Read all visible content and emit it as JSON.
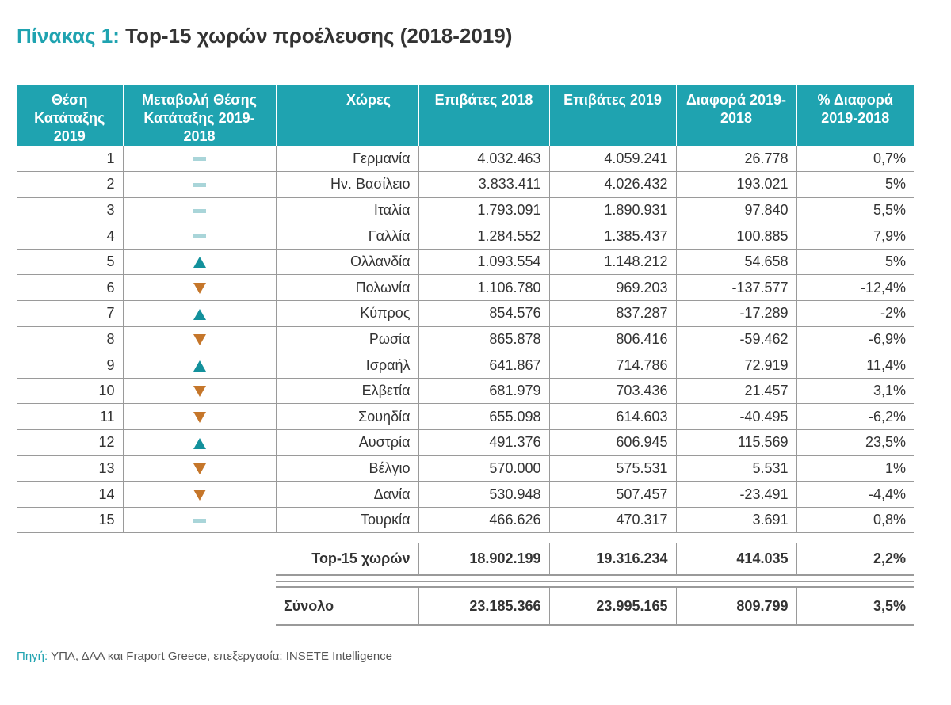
{
  "title": {
    "prefix": "Πίνακας 1:",
    "text": "Top-15 χωρών προέλευσης (2018-2019)"
  },
  "colors": {
    "header_bg": "#1FA3B0",
    "up_arrow": "#13919C",
    "down_arrow": "#C5762A",
    "no_change": "#A9D5D9"
  },
  "chart_data": {
    "type": "table",
    "title": "Top-15 χωρών προέλευσης (2018-2019)",
    "columns": [
      "Θέση Κατάταξης 2019",
      "Μεταβολή Θέσης Κατάταξης 2019-2018",
      "Χώρες",
      "Επιβάτες 2018",
      "Επιβάτες 2019",
      "Διαφορά 2019-2018",
      "% Διαφορά 2019-2018"
    ],
    "rows": [
      {
        "rank": "1",
        "change": "same",
        "country": "Γερμανία",
        "p2018": "4.032.463",
        "p2019": "4.059.241",
        "diff": "26.778",
        "pct": "0,7%"
      },
      {
        "rank": "2",
        "change": "same",
        "country": "Ην. Βασίλειο",
        "p2018": "3.833.411",
        "p2019": "4.026.432",
        "diff": "193.021",
        "pct": "5%"
      },
      {
        "rank": "3",
        "change": "same",
        "country": "Ιταλία",
        "p2018": "1.793.091",
        "p2019": "1.890.931",
        "diff": "97.840",
        "pct": "5,5%"
      },
      {
        "rank": "4",
        "change": "same",
        "country": "Γαλλία",
        "p2018": "1.284.552",
        "p2019": "1.385.437",
        "diff": "100.885",
        "pct": "7,9%"
      },
      {
        "rank": "5",
        "change": "up",
        "country": "Ολλανδία",
        "p2018": "1.093.554",
        "p2019": "1.148.212",
        "diff": "54.658",
        "pct": "5%"
      },
      {
        "rank": "6",
        "change": "down",
        "country": "Πολωνία",
        "p2018": "1.106.780",
        "p2019": "969.203",
        "diff": "-137.577",
        "pct": "-12,4%"
      },
      {
        "rank": "7",
        "change": "up",
        "country": "Κύπρος",
        "p2018": "854.576",
        "p2019": "837.287",
        "diff": "-17.289",
        "pct": "-2%"
      },
      {
        "rank": "8",
        "change": "down",
        "country": "Ρωσία",
        "p2018": "865.878",
        "p2019": "806.416",
        "diff": "-59.462",
        "pct": "-6,9%"
      },
      {
        "rank": "9",
        "change": "up",
        "country": "Ισραήλ",
        "p2018": "641.867",
        "p2019": "714.786",
        "diff": "72.919",
        "pct": "11,4%"
      },
      {
        "rank": "10",
        "change": "down",
        "country": "Ελβετία",
        "p2018": "681.979",
        "p2019": "703.436",
        "diff": "21.457",
        "pct": "3,1%"
      },
      {
        "rank": "11",
        "change": "down",
        "country": "Σουηδία",
        "p2018": "655.098",
        "p2019": "614.603",
        "diff": "-40.495",
        "pct": "-6,2%"
      },
      {
        "rank": "12",
        "change": "up",
        "country": "Αυστρία",
        "p2018": "491.376",
        "p2019": "606.945",
        "diff": "115.569",
        "pct": "23,5%"
      },
      {
        "rank": "13",
        "change": "down",
        "country": "Βέλγιο",
        "p2018": "570.000",
        "p2019": "575.531",
        "diff": "5.531",
        "pct": "1%"
      },
      {
        "rank": "14",
        "change": "down",
        "country": "Δανία",
        "p2018": "530.948",
        "p2019": "507.457",
        "diff": "-23.491",
        "pct": "-4,4%"
      },
      {
        "rank": "15",
        "change": "same",
        "country": "Τουρκία",
        "p2018": "466.626",
        "p2019": "470.317",
        "diff": "3.691",
        "pct": "0,8%"
      }
    ],
    "subtotal": {
      "label": "Top-15 χωρών",
      "p2018": "18.902.199",
      "p2019": "19.316.234",
      "diff": "414.035",
      "pct": "2,2%"
    },
    "total": {
      "label": "Σύνολο",
      "p2018": "23.185.366",
      "p2019": "23.995.165",
      "diff": "809.799",
      "pct": "3,5%"
    }
  },
  "source": {
    "label": "Πηγή:",
    "text": "ΥΠΑ, ΔΑΑ και Fraport Greece, επεξεργασία: INSETE Intelligence"
  }
}
